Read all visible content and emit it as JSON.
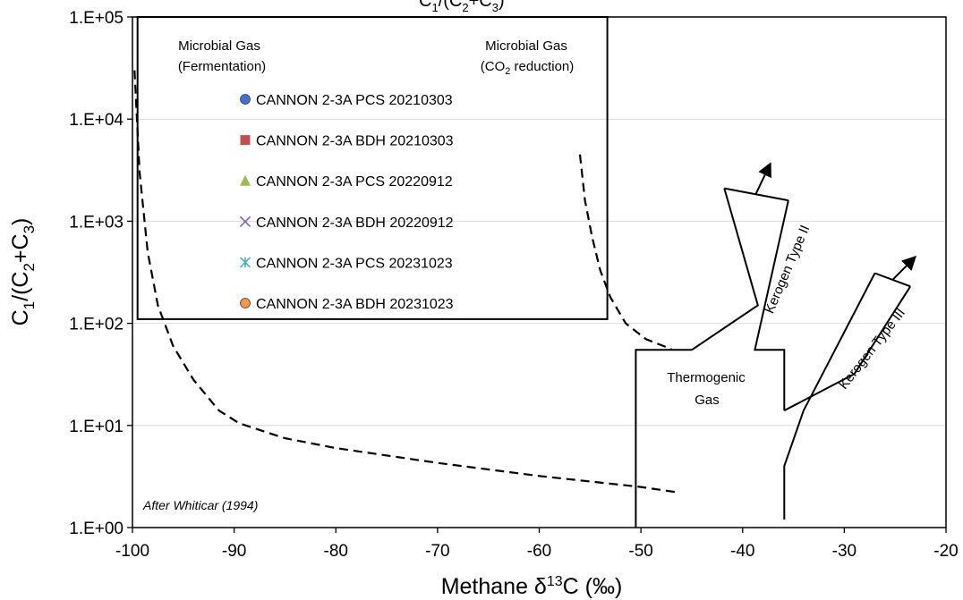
{
  "chart_data": {
    "type": "scatter",
    "title": "",
    "title_fragment": {
      "c1": "1",
      "c2": "2",
      "c3": "3"
    },
    "xlabel": {
      "base": "Methane δ",
      "sup": "13",
      "rest": "C (‰)"
    },
    "ylabel": {
      "p1": "C",
      "s1": "1",
      "p2": "/(C",
      "s2": "2",
      "p3": "+C",
      "s3": "3",
      "p4": ")"
    },
    "xlim": [
      -100,
      -20
    ],
    "ylim": [
      1,
      100000
    ],
    "yscale": "log",
    "grid": "horizontal-major",
    "x_ticks": [
      -100,
      -90,
      -80,
      -70,
      -60,
      -50,
      -40,
      -30,
      -20
    ],
    "x_tick_labels": [
      "-100",
      "-90",
      "-80",
      "-70",
      "-60",
      "-50",
      "-40",
      "-30",
      "-20"
    ],
    "y_ticks": [
      1,
      10,
      100,
      1000,
      10000,
      100000
    ],
    "y_tick_labels": [
      "1.E+00",
      "1.E+01",
      "1.E+02",
      "1.E+03",
      "1.E+04",
      "1.E+05"
    ],
    "legend_position": "inside-top-left",
    "series": [
      {
        "name": "CANNON 2-3A PCS 20210303",
        "marker": "circle",
        "color": "#4472C4",
        "points": []
      },
      {
        "name": "CANNON 2-3A BDH 20210303",
        "marker": "square",
        "color": "#C0504D",
        "points": []
      },
      {
        "name": "CANNON 2-3A PCS 20220912",
        "marker": "triangle",
        "color": "#9BBB59",
        "points": []
      },
      {
        "name": "CANNON 2-3A BDH 20220912",
        "marker": "x",
        "color": "#8064A2",
        "points": []
      },
      {
        "name": "CANNON 2-3A PCS 20231023",
        "marker": "star",
        "color": "#4BACC6",
        "points": []
      },
      {
        "name": "CANNON 2-3A BDH 20231023",
        "marker": "circle",
        "color": "#F79646",
        "points": []
      }
    ],
    "region_labels": {
      "fermentation_line1": "Microbial Gas",
      "fermentation_line2": "(Fermentation)",
      "co2_line1": "Microbial Gas",
      "co2_line2_a": "(CO",
      "co2_line2_sub": "2",
      "co2_line2_b": " reduction)",
      "thermo_line1": "Thermogenic",
      "thermo_line2": "Gas",
      "kerogen2": "Kerogen Type II",
      "kerogen3": "Kerogen Type III",
      "source": "After Whiticar (1994)"
    },
    "boundaries": {
      "microbial_box": [
        [
          -99.5,
          100000
        ],
        [
          -53.3,
          100000
        ],
        [
          -53.3,
          110
        ],
        [
          -99.5,
          110
        ]
      ],
      "thermogenic_left": [
        [
          -50.5,
          1
        ],
        [
          -50.5,
          55
        ],
        [
          -45,
          55
        ]
      ],
      "kerogen2_left": [
        [
          -45,
          55
        ],
        [
          -38.5,
          150
        ],
        [
          -41.8,
          2100
        ]
      ],
      "kerogen2_top": [
        [
          -41.8,
          2100
        ],
        [
          -35.5,
          1600
        ]
      ],
      "kerogen2_right": [
        [
          -35.5,
          1600
        ],
        [
          -38.8,
          55
        ],
        [
          -35.9,
          55
        ],
        [
          -35.9,
          14
        ]
      ],
      "kerogen3_right": [
        [
          -35.9,
          14
        ],
        [
          -29,
          32
        ],
        [
          -23.5,
          230
        ]
      ],
      "kerogen3_top": [
        [
          -23.5,
          230
        ],
        [
          -27,
          310
        ]
      ],
      "kerogen3_left": [
        [
          -27,
          310
        ],
        [
          -34,
          14
        ],
        [
          -35.9,
          4
        ],
        [
          -35.9,
          1.2
        ]
      ],
      "arrow2": [
        [
          -38.7,
          1850
        ],
        [
          -37.2,
          3800
        ]
      ],
      "arrow3": [
        [
          -25.2,
          270
        ],
        [
          -22.9,
          460
        ]
      ],
      "fermentation_curve": [
        [
          -99.8,
          30000
        ],
        [
          -99.3,
          3000
        ],
        [
          -98.5,
          500
        ],
        [
          -97.5,
          150
        ],
        [
          -96,
          60
        ],
        [
          -94,
          28
        ],
        [
          -91.5,
          14
        ],
        [
          -89.5,
          10.5
        ],
        [
          -85,
          7.5
        ],
        [
          -80,
          6
        ],
        [
          -70,
          4.3
        ],
        [
          -60,
          3.2
        ],
        [
          -50,
          2.5
        ],
        [
          -46.2,
          2.2
        ]
      ],
      "co2_curve": [
        [
          -56,
          4500
        ],
        [
          -55.5,
          1600
        ],
        [
          -54.8,
          700
        ],
        [
          -54,
          330
        ],
        [
          -53,
          180
        ],
        [
          -51.5,
          100
        ],
        [
          -49.5,
          70
        ],
        [
          -47,
          56
        ]
      ]
    }
  }
}
